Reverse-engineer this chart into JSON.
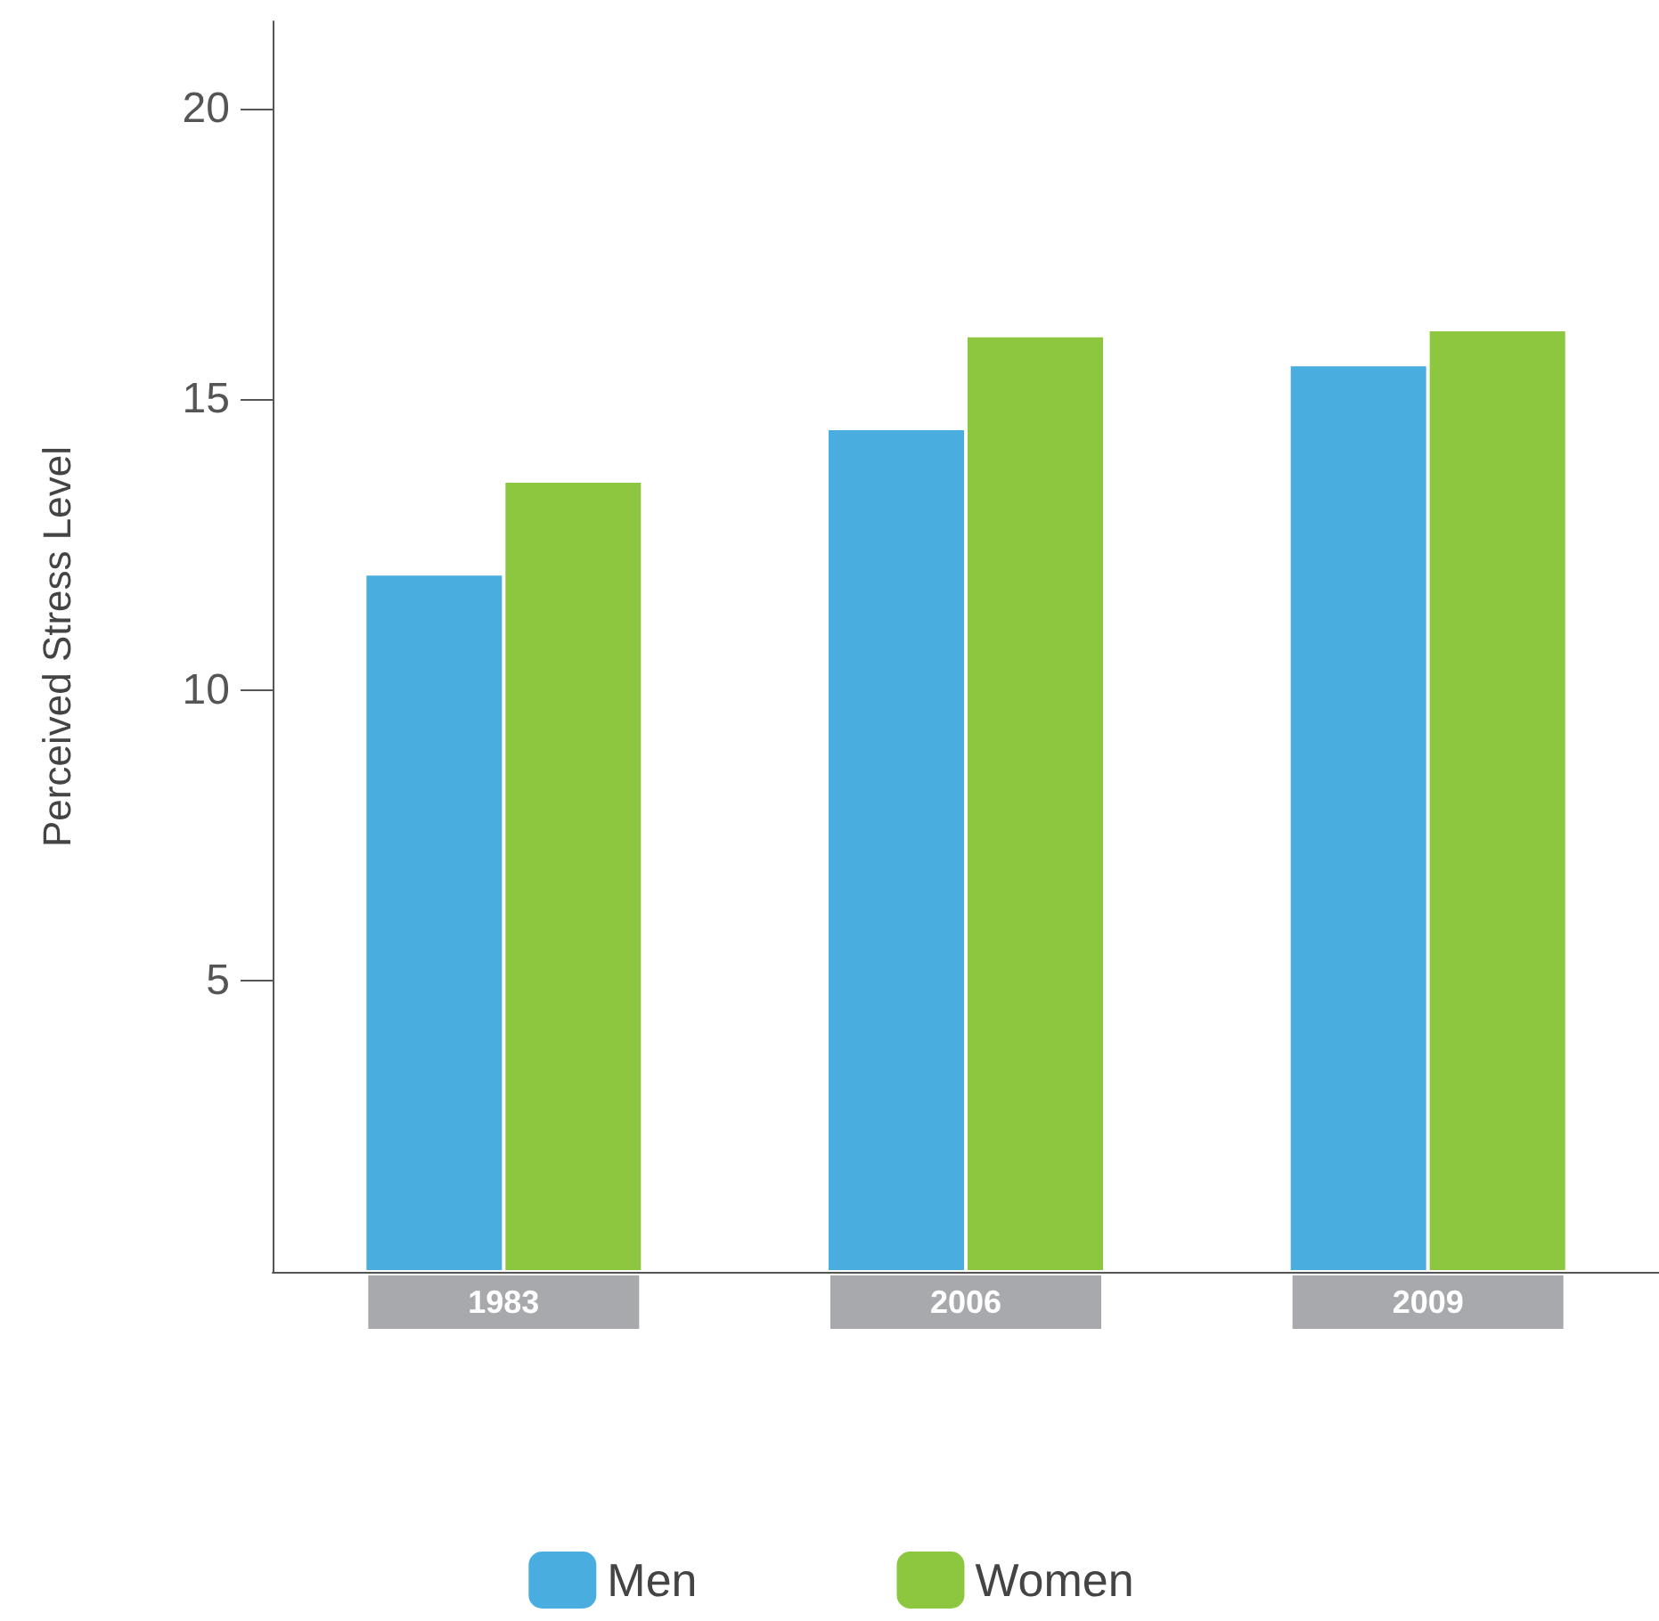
{
  "chart_data": {
    "type": "bar",
    "ylabel": "Perceived Stress Level",
    "categories": [
      "1983",
      "2006",
      "2009"
    ],
    "series": [
      {
        "name": "Men",
        "color": "#4aade0",
        "values": [
          12.0,
          14.5,
          15.6
        ]
      },
      {
        "name": "Women",
        "color": "#8dc63f",
        "values": [
          13.6,
          16.1,
          16.2
        ]
      }
    ],
    "ylim": [
      0,
      21.5
    ],
    "yticks": [
      5,
      10,
      15,
      20
    ],
    "grid": false,
    "legend": "bottom"
  }
}
